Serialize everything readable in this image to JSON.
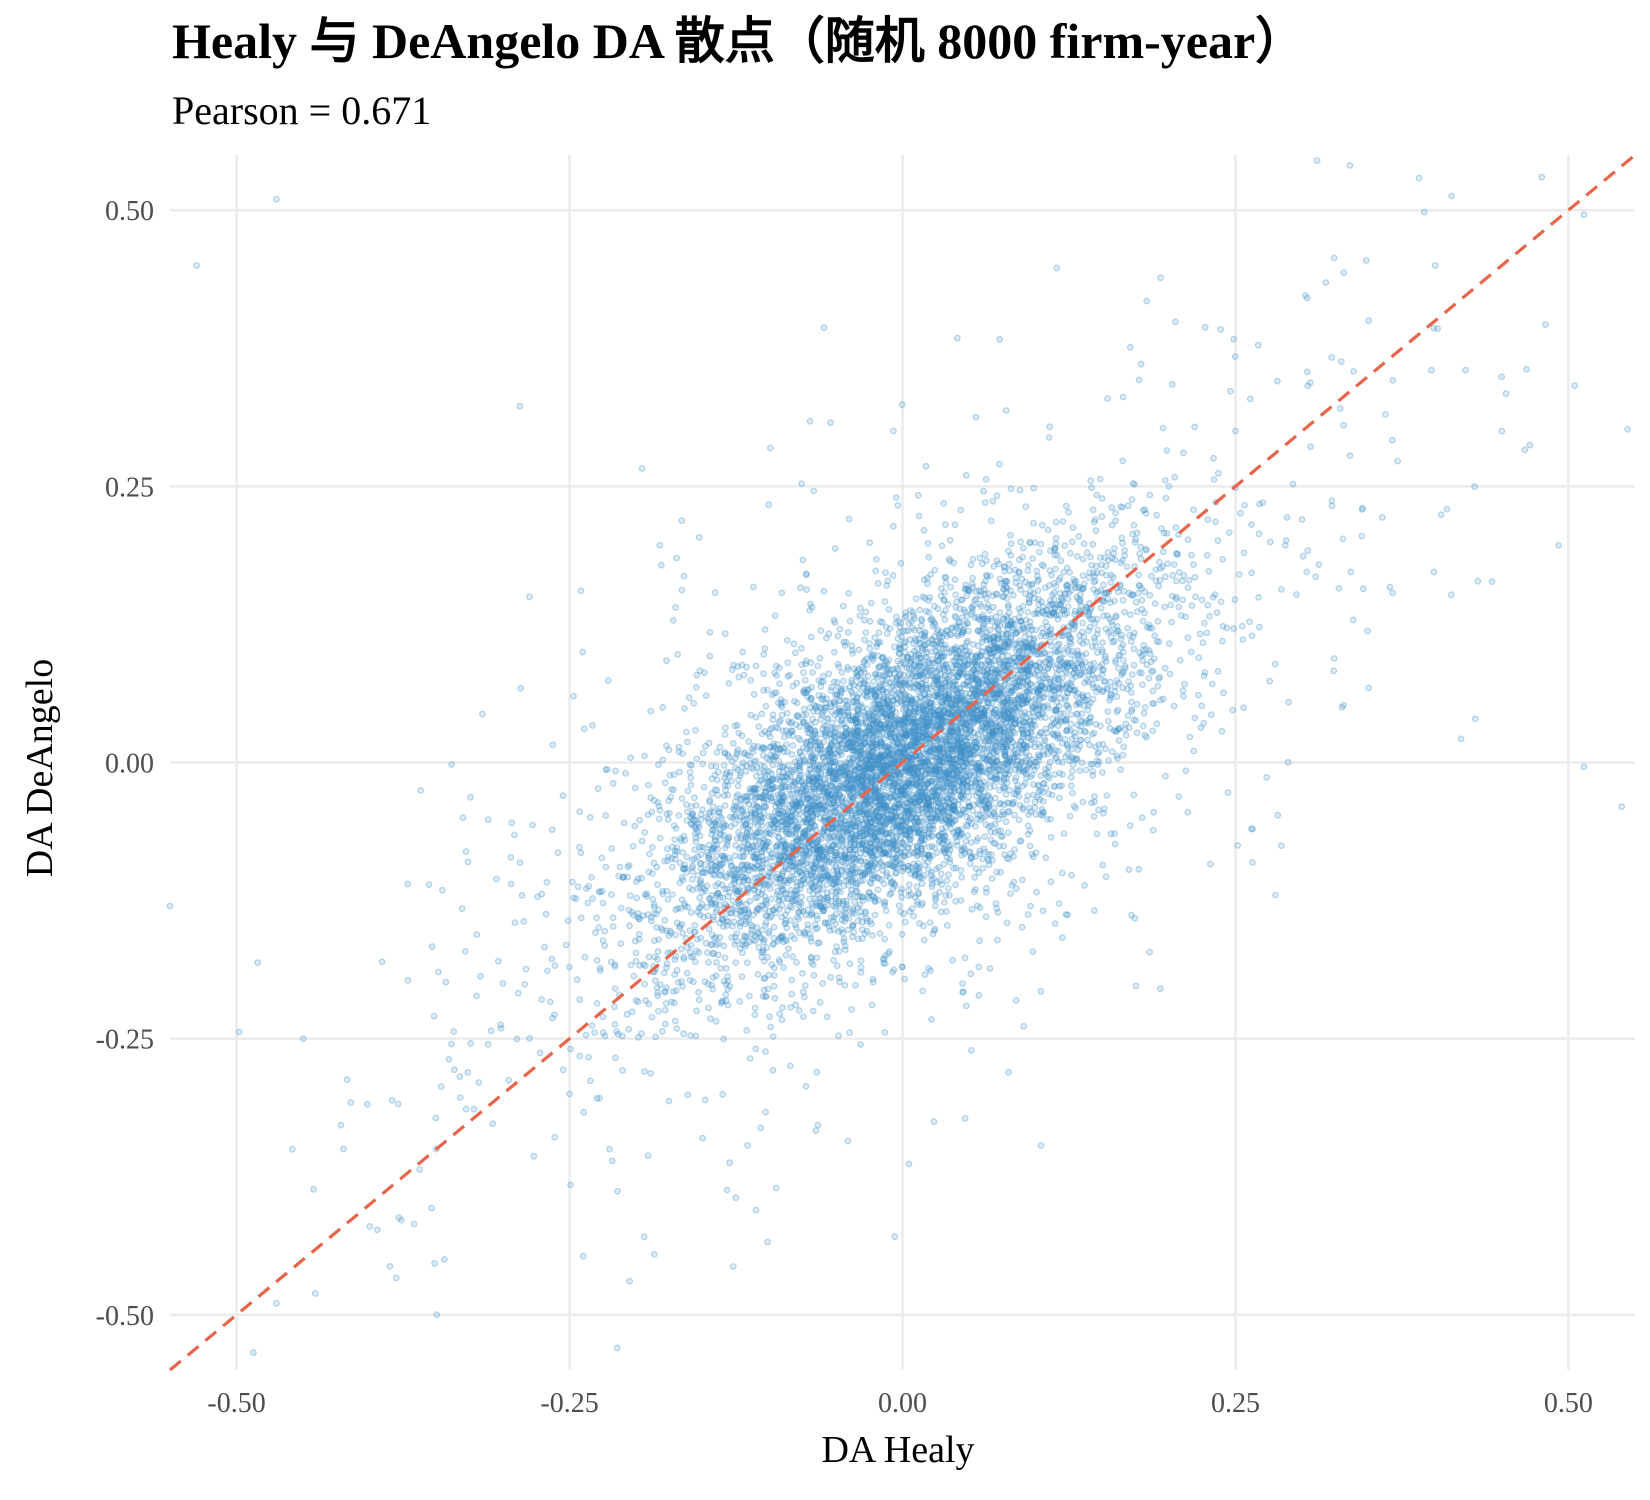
{
  "chart_data": {
    "type": "scatter",
    "title": "Healy 与 DeAngelo DA 散点（随机 8000 firm-year）",
    "subtitle": "Pearson = 0.671",
    "xlabel": "DA Healy",
    "ylabel": "DA DeAngelo",
    "xlim": [
      -0.55,
      0.55
    ],
    "ylim": [
      -0.55,
      0.55
    ],
    "xticks": [
      -0.5,
      -0.25,
      0.0,
      0.25,
      0.5
    ],
    "yticks": [
      -0.5,
      -0.25,
      0.0,
      0.25,
      0.5
    ],
    "xtick_labels": [
      "-0.50",
      "-0.25",
      "0.00",
      "0.25",
      "0.50"
    ],
    "ytick_labels": [
      "-0.50",
      "-0.25",
      "0.00",
      "0.25",
      "0.50"
    ],
    "grid": true,
    "n_points": 8000,
    "pearson": 0.671,
    "point_color": "#3e8fc9",
    "reference_line": {
      "type": "y=x",
      "style": "dashed",
      "color": "#e8644a"
    },
    "points_sample": [
      [
        0.0,
        0.0
      ],
      [
        0.05,
        0.04
      ],
      [
        -0.05,
        -0.03
      ],
      [
        0.1,
        0.12
      ],
      [
        -0.1,
        -0.08
      ],
      [
        0.02,
        -0.06
      ],
      [
        -0.03,
        0.05
      ],
      [
        0.08,
        0.02
      ],
      [
        -0.08,
        -0.12
      ],
      [
        0.15,
        0.1
      ],
      [
        -0.15,
        -0.1
      ],
      [
        0.2,
        0.25
      ],
      [
        -0.2,
        -0.18
      ],
      [
        0.25,
        0.3
      ],
      [
        -0.25,
        -0.3
      ],
      [
        0.3,
        0.22
      ],
      [
        -0.3,
        -0.2
      ],
      [
        0.12,
        -0.1
      ],
      [
        -0.12,
        0.1
      ],
      [
        0.35,
        0.4
      ],
      [
        -0.35,
        -0.35
      ],
      [
        0.4,
        0.45
      ],
      [
        -0.4,
        -0.42
      ],
      [
        0.45,
        0.3
      ],
      [
        -0.45,
        -0.25
      ],
      [
        0.48,
        0.53
      ],
      [
        -0.47,
        0.51
      ],
      [
        -0.53,
        0.45
      ],
      [
        0.54,
        -0.04
      ],
      [
        -0.55,
        -0.13
      ],
      [
        0.22,
        0.15
      ],
      [
        -0.22,
        -0.35
      ],
      [
        0.18,
        -0.05
      ],
      [
        -0.18,
        0.05
      ],
      [
        0.06,
        0.18
      ],
      [
        -0.06,
        -0.2
      ],
      [
        0.28,
        -0.12
      ],
      [
        -0.28,
        0.15
      ],
      [
        0.33,
        0.05
      ],
      [
        -0.33,
        -0.05
      ]
    ]
  }
}
